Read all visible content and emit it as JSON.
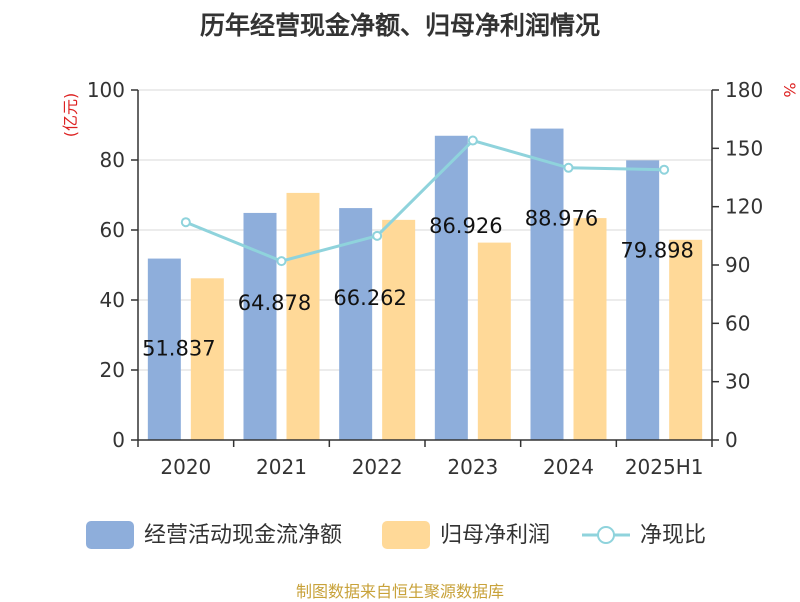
{
  "chart_data": {
    "type": "bar",
    "title": "历年经营现金净额、归母净利润情况",
    "categories": [
      "2020",
      "2021",
      "2022",
      "2023",
      "2024",
      "2025H1"
    ],
    "y_left": {
      "label": "(亿元)",
      "lim": [
        0,
        100
      ],
      "ticks": [
        "0",
        "20",
        "40",
        "60",
        "80",
        "100"
      ]
    },
    "y_right": {
      "label": "%",
      "lim": [
        0,
        180
      ],
      "ticks": [
        "0",
        "30",
        "60",
        "90",
        "120",
        "150",
        "180"
      ]
    },
    "series": [
      {
        "name": "经营活动现金流净额",
        "type": "bar",
        "axis": "left",
        "color": "#8eaedb",
        "values": [
          51.837,
          64.878,
          66.262,
          86.926,
          88.976,
          79.898
        ],
        "labels": [
          "51.837",
          "64.878",
          "66.262",
          "86.926",
          "88.976",
          "79.898"
        ]
      },
      {
        "name": "归母净利润",
        "type": "bar",
        "axis": "left",
        "color": "#ffd998",
        "values": [
          46.2,
          70.6,
          62.9,
          56.4,
          63.4,
          57.2
        ]
      },
      {
        "name": "净现比",
        "type": "line",
        "axis": "right",
        "color": "#8fd3dc",
        "values": [
          112,
          92,
          105,
          154,
          140,
          139
        ]
      }
    ],
    "grid": true,
    "legend_position": "bottom"
  },
  "source": "制图数据来自恒生聚源数据库"
}
